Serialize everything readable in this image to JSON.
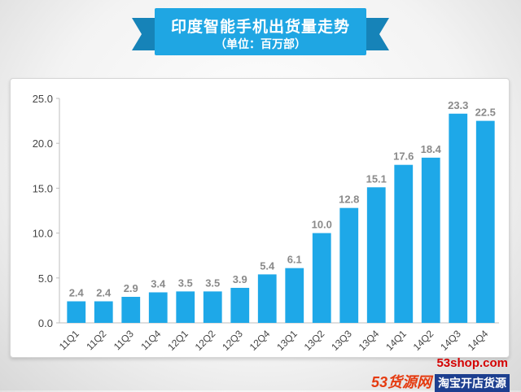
{
  "header": {
    "title": "印度智能手机出货量走势",
    "subtitle": "（单位：百万部）"
  },
  "brand": {
    "site": "53shop.com",
    "logo": "53货源网",
    "tag": "淘宝开店货源"
  },
  "colors": {
    "bar": "#1ea8e8",
    "ribbon": "#1fa6e3",
    "label": "#8a8a8a"
  },
  "chart_data": {
    "type": "bar",
    "categories": [
      "11Q1",
      "11Q2",
      "11Q3",
      "11Q4",
      "12Q1",
      "12Q2",
      "12Q3",
      "12Q4",
      "13Q1",
      "13Q2",
      "13Q3",
      "13Q4",
      "14Q1",
      "14Q2",
      "14Q3",
      "14Q4"
    ],
    "values": [
      2.4,
      2.4,
      2.9,
      3.4,
      3.5,
      3.5,
      3.9,
      5.4,
      6.1,
      10.0,
      12.8,
      15.1,
      17.6,
      18.4,
      23.3,
      22.5
    ],
    "value_labels": [
      "2.4",
      "2.4",
      "2.9",
      "3.4",
      "3.5",
      "3.5",
      "3.9",
      "5.4",
      "6.1",
      "10.0",
      "12.8",
      "15.1",
      "17.6",
      "18.4",
      "23.3",
      "22.5"
    ],
    "ylim": [
      0,
      25
    ],
    "yticks": [
      "0.0",
      "5.0",
      "10.0",
      "15.0",
      "20.0",
      "25.0"
    ],
    "ytick_values": [
      0,
      5,
      10,
      15,
      20,
      25
    ],
    "grid": false,
    "legend": "none"
  }
}
